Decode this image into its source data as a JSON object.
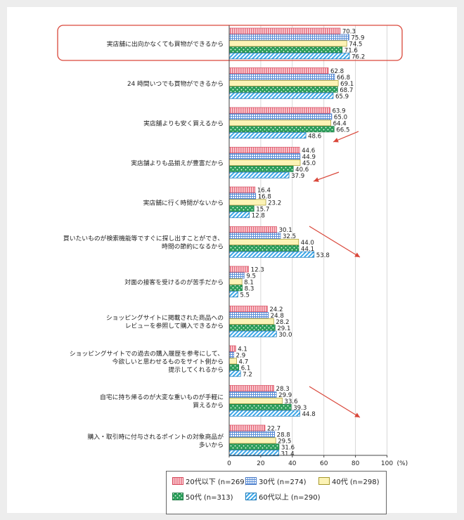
{
  "chart_data": {
    "type": "bar",
    "orientation": "horizontal",
    "unit": "(%)",
    "xlim": [
      0,
      100
    ],
    "xticks": [
      0,
      20,
      40,
      60,
      80,
      100
    ],
    "categories": [
      [
        "実店舗に出向かなくても買物ができるから"
      ],
      [
        "24 時間いつでも買物ができるから"
      ],
      [
        "実店舗よりも安く買えるから"
      ],
      [
        "実店舗よりも品揃えが豊富だから"
      ],
      [
        "実店舗に行く時間がないから"
      ],
      [
        "買いたいものが検索機能等ですぐに探し出すことができ、",
        "時間の節約になるから"
      ],
      [
        "対面の接客を受けるのが苦手だから"
      ],
      [
        "ショッピングサイトに掲載された商品への",
        "レビューを参照して購入できるから"
      ],
      [
        "ショッピングサイトでの過去の購入履歴を参考にして、",
        "今欲しいと思わせるものをサイト側から",
        "提示してくれるから"
      ],
      [
        "自宅に持ち帰るのが大変な重いものが手軽に",
        "買えるから"
      ],
      [
        "購入・取引時に付与されるポイントの対象商品が",
        "多いから"
      ]
    ],
    "series": [
      {
        "name": "20代以下 (n=269)",
        "color": "#f4a3ad",
        "values": [
          70.3,
          62.8,
          63.9,
          44.6,
          16.4,
          30.1,
          12.3,
          24.2,
          4.1,
          28.3,
          22.7
        ]
      },
      {
        "name": "30代 (n=274)",
        "color": "#c9daf4",
        "values": [
          75.9,
          66.8,
          65.0,
          44.9,
          16.8,
          32.5,
          9.5,
          24.8,
          2.9,
          29.9,
          28.8
        ]
      },
      {
        "name": "40代 (n=298)",
        "color": "#fcf3b6",
        "values": [
          74.5,
          69.1,
          64.4,
          45.0,
          23.2,
          44.0,
          8.1,
          28.2,
          4.7,
          33.6,
          29.5
        ]
      },
      {
        "name": "50代 (n=313)",
        "color": "#2b9e5a",
        "values": [
          71.6,
          68.7,
          66.5,
          40.6,
          15.7,
          44.1,
          8.3,
          29.1,
          6.1,
          39.3,
          31.6
        ]
      },
      {
        "name": "60代以上 (n=290)",
        "color": "#3aa6e8",
        "values": [
          76.2,
          65.9,
          48.6,
          37.9,
          12.8,
          53.8,
          5.5,
          30.0,
          7.2,
          44.8,
          31.4
        ]
      }
    ],
    "highlight_category_index": 0,
    "highlight_color": "#d9473a",
    "arrow_color": "#d9473a"
  }
}
